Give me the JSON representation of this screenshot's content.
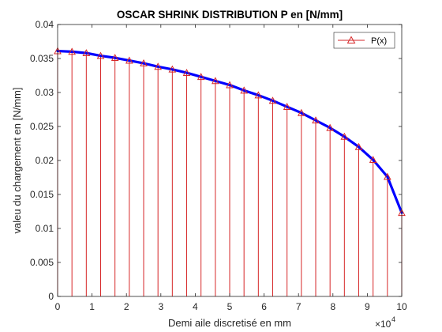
{
  "chart_data": {
    "type": "line",
    "title": "OSCAR SHRINK DISTRIBUTION P en [N/mm]",
    "xlabel": "Demi aile  discretisé en mm",
    "ylabel": "valeu du chargement en [N/mm]",
    "x_exponent_base": "×10",
    "x_exponent_power": "4",
    "xlim": [
      0,
      100000
    ],
    "ylim": [
      0,
      0.04
    ],
    "x_ticks": [
      0,
      10000,
      20000,
      30000,
      40000,
      50000,
      60000,
      70000,
      80000,
      90000,
      100000
    ],
    "x_tick_labels": [
      "0",
      "1",
      "2",
      "3",
      "4",
      "5",
      "6",
      "7",
      "8",
      "9",
      "10"
    ],
    "y_ticks": [
      0,
      0.005,
      0.01,
      0.015,
      0.02,
      0.025,
      0.03,
      0.035,
      0.04
    ],
    "y_tick_labels": [
      "0",
      "0.005",
      "0.01",
      "0.015",
      "0.02",
      "0.025",
      "0.03",
      "0.035",
      "0.04"
    ],
    "grid": false,
    "legend_position": "top-right",
    "series": [
      {
        "name": "P(x)",
        "style": "stem",
        "color": "#d62728",
        "marker": "triangle",
        "x": [
          0,
          4167,
          8333,
          12500,
          16667,
          20833,
          25000,
          29167,
          33333,
          37500,
          41667,
          45833,
          50000,
          54167,
          58333,
          62500,
          66667,
          70833,
          75000,
          79167,
          83333,
          87500,
          91667,
          95833,
          100000
        ],
        "values": [
          0.0361,
          0.036,
          0.0358,
          0.0354,
          0.0351,
          0.0347,
          0.0343,
          0.0338,
          0.0334,
          0.0329,
          0.0323,
          0.0317,
          0.0311,
          0.0303,
          0.0296,
          0.0288,
          0.0279,
          0.027,
          0.0259,
          0.0248,
          0.0235,
          0.022,
          0.0201,
          0.0176,
          0.0123
        ]
      },
      {
        "style": "line",
        "color": "#0000ff",
        "x": [
          0,
          4167,
          8333,
          12500,
          16667,
          20833,
          25000,
          29167,
          33333,
          37500,
          41667,
          45833,
          50000,
          54167,
          58333,
          62500,
          66667,
          70833,
          75000,
          79167,
          83333,
          87500,
          91667,
          95833,
          100000
        ],
        "values": [
          0.0361,
          0.036,
          0.0358,
          0.0354,
          0.0351,
          0.0347,
          0.0343,
          0.0338,
          0.0334,
          0.0329,
          0.0323,
          0.0317,
          0.0311,
          0.0303,
          0.0296,
          0.0288,
          0.0279,
          0.027,
          0.0259,
          0.0248,
          0.0235,
          0.022,
          0.0201,
          0.0176,
          0.0123
        ]
      }
    ]
  }
}
